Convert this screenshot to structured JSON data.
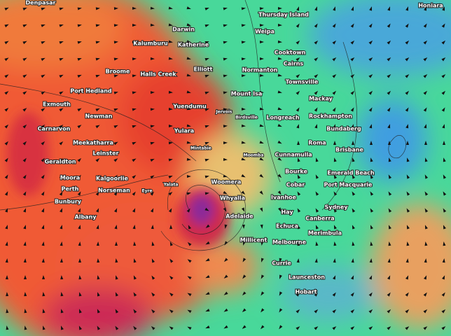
{
  "places": [
    {
      "name": "Denpasar"
    },
    {
      "name": "Thursday Island"
    },
    {
      "name": "Honiara"
    },
    {
      "name": "Darwin"
    },
    {
      "name": "Weipa"
    },
    {
      "name": "Kalumburu"
    },
    {
      "name": "Katherine"
    },
    {
      "name": "Cooktown"
    },
    {
      "name": "Cairns"
    },
    {
      "name": "Broome"
    },
    {
      "name": "Halls Creek"
    },
    {
      "name": "Elliott"
    },
    {
      "name": "Normanton"
    },
    {
      "name": "Townsville"
    },
    {
      "name": "Port Hedland"
    },
    {
      "name": "Mount Isa"
    },
    {
      "name": "Mackay"
    },
    {
      "name": "Exmouth"
    },
    {
      "name": "Yuendumu"
    },
    {
      "name": "Jervois"
    },
    {
      "name": "Longreach"
    },
    {
      "name": "Rockhampton"
    },
    {
      "name": "Newman"
    },
    {
      "name": "Carnarvon"
    },
    {
      "name": "Yulara"
    },
    {
      "name": "Birdsville"
    },
    {
      "name": "Bundaberg"
    },
    {
      "name": "Meekatharra"
    },
    {
      "name": "Mintabie"
    },
    {
      "name": "Moomba"
    },
    {
      "name": "Roma"
    },
    {
      "name": "Brisbane"
    },
    {
      "name": "Leinster"
    },
    {
      "name": "Cunnamulla"
    },
    {
      "name": "Geraldton"
    },
    {
      "name": "Moora"
    },
    {
      "name": "Kalgoorlie"
    },
    {
      "name": "Bourke"
    },
    {
      "name": "Emerald Beach"
    },
    {
      "name": "Perth"
    },
    {
      "name": "Yalata"
    },
    {
      "name": "Woomera"
    },
    {
      "name": "Cobar"
    },
    {
      "name": "Port Macquarie"
    },
    {
      "name": "Norseman"
    },
    {
      "name": "Eyre"
    },
    {
      "name": "Bunbury"
    },
    {
      "name": "Whyalla"
    },
    {
      "name": "Ivanhoe"
    },
    {
      "name": "Sydney"
    },
    {
      "name": "Albany"
    },
    {
      "name": "Adelaide"
    },
    {
      "name": "Hay"
    },
    {
      "name": "Canberra"
    },
    {
      "name": "Echuca"
    },
    {
      "name": "Merimbula"
    },
    {
      "name": "Millicent"
    },
    {
      "name": "Melbourne"
    },
    {
      "name": "Currie"
    },
    {
      "name": "Launceston"
    },
    {
      "name": "Hobart"
    }
  ]
}
